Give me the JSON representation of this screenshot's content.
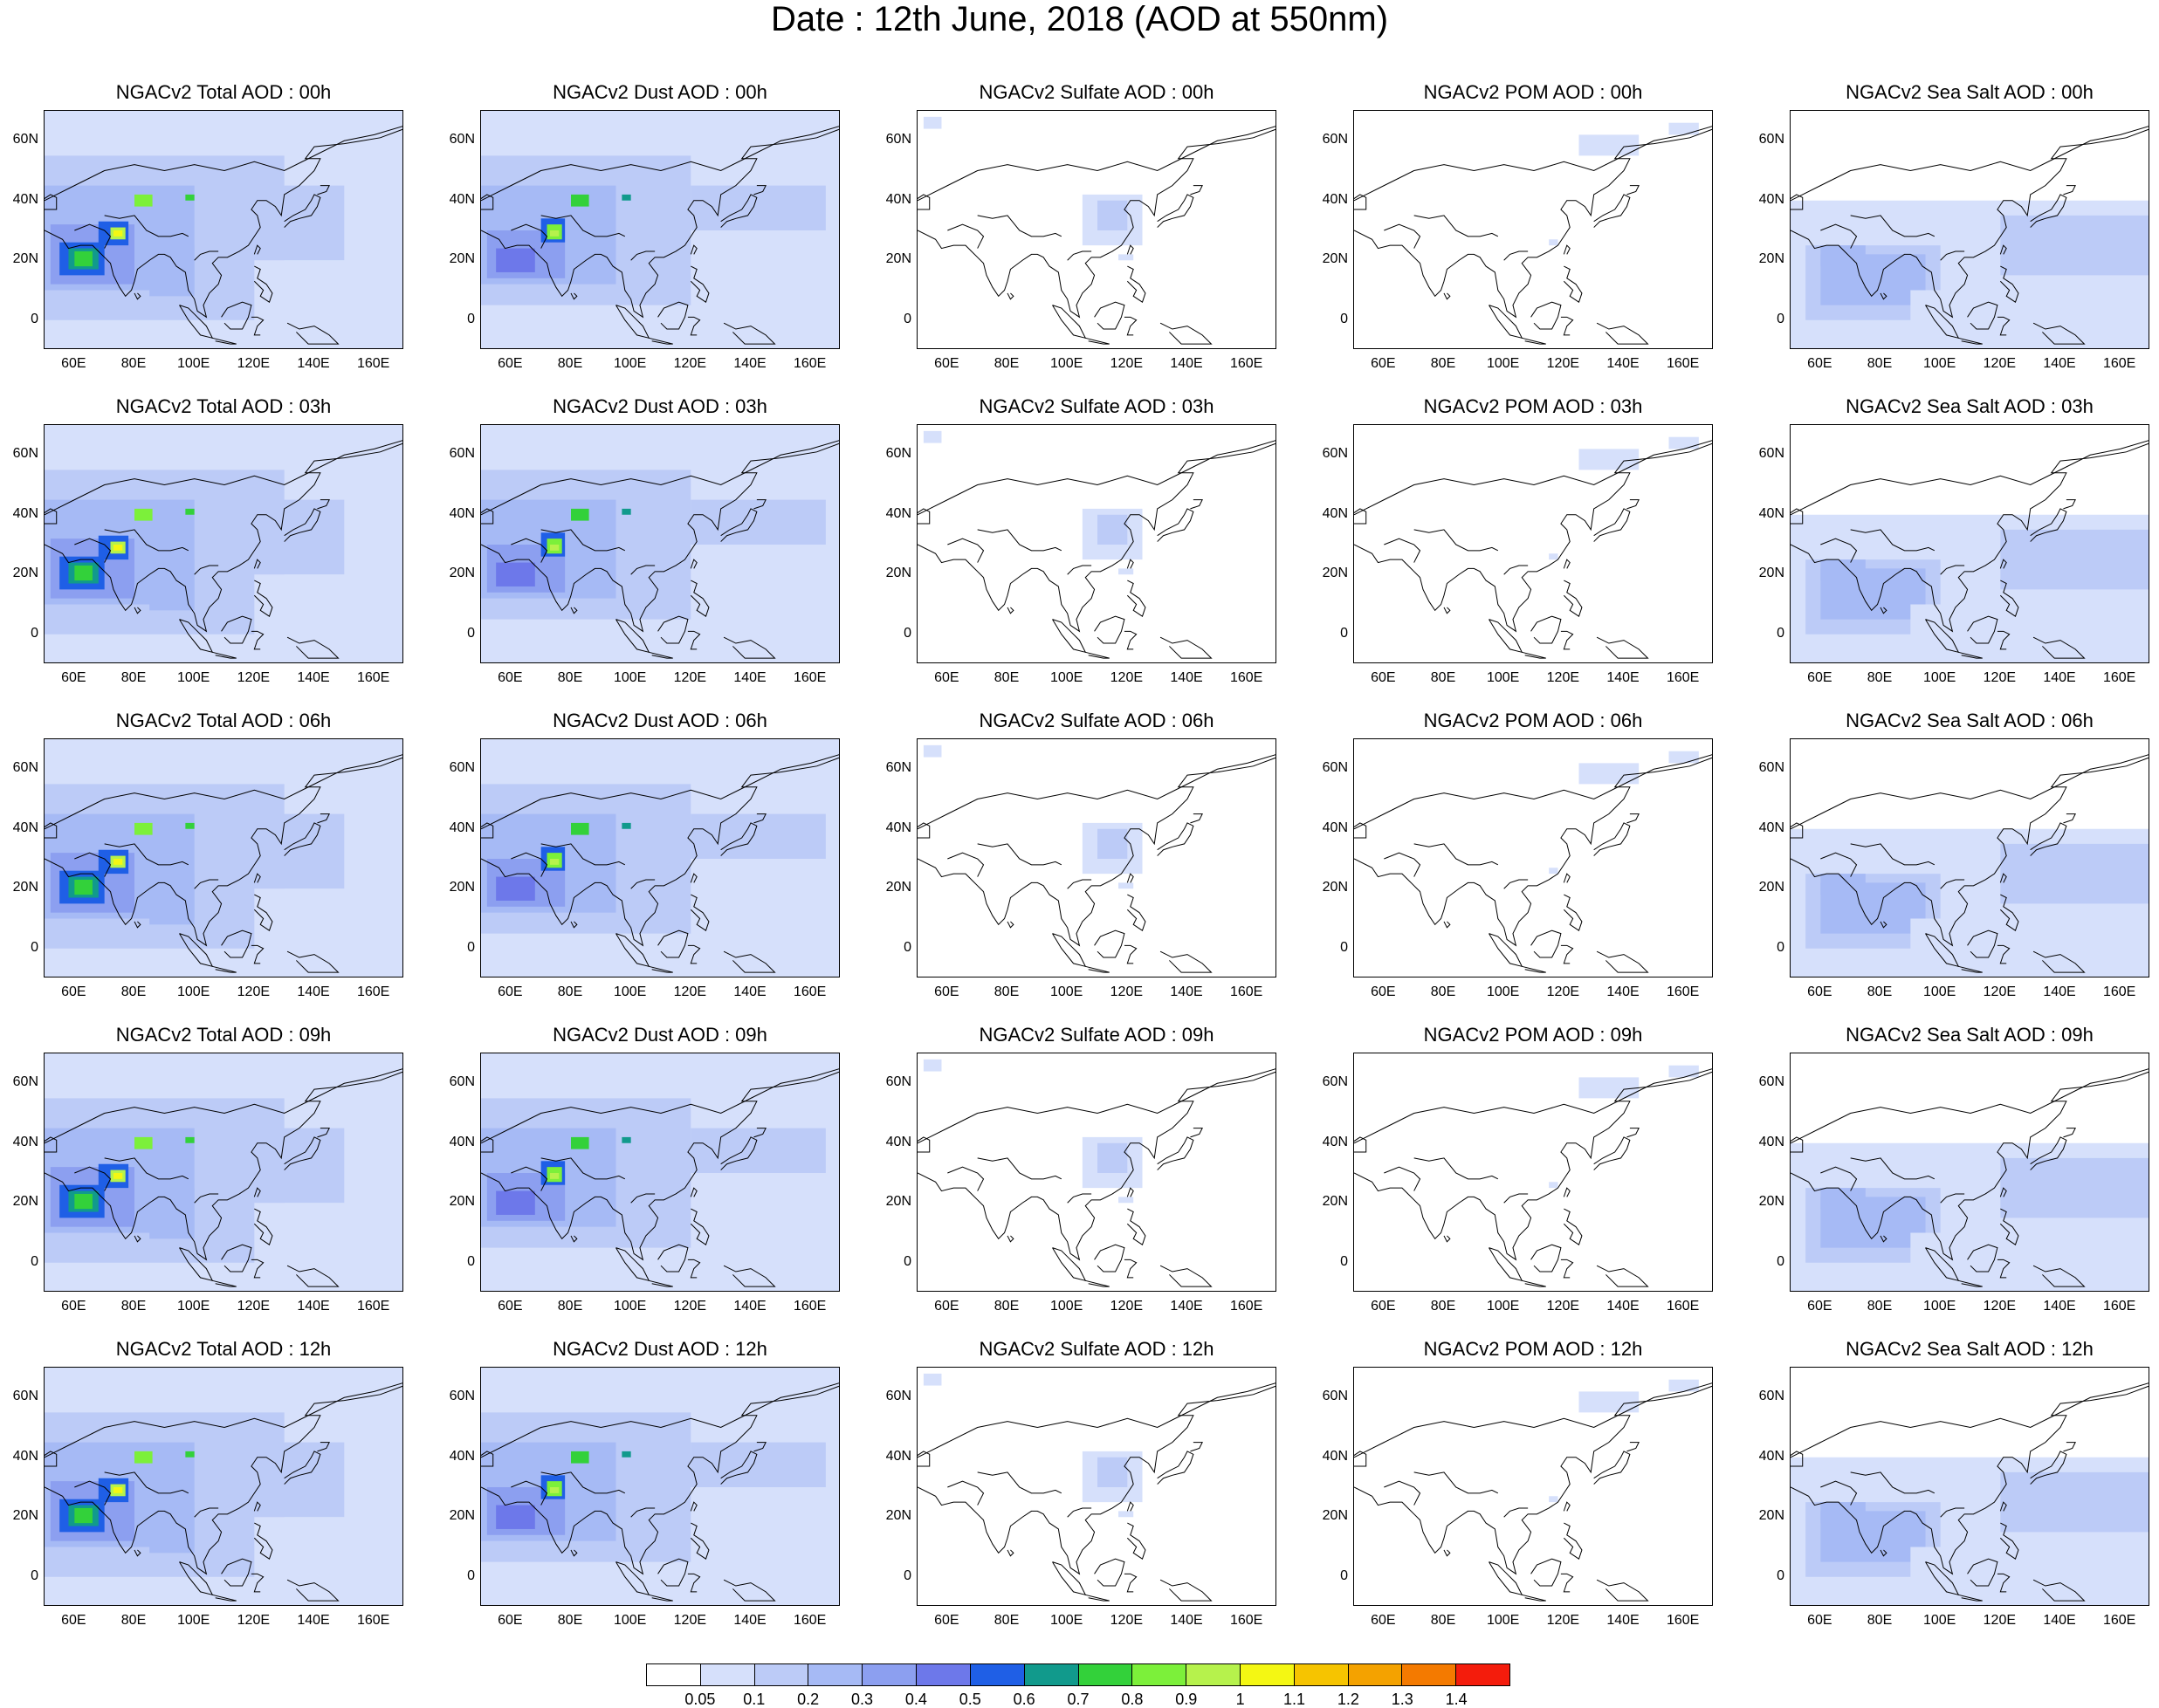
{
  "title": "Date : 12th June, 2018 (AOD at 550nm)",
  "lat_ticks": [
    "60N",
    "40N",
    "20N",
    "0"
  ],
  "lon_ticks": [
    "60E",
    "80E",
    "100E",
    "120E",
    "140E",
    "160E"
  ],
  "panels": [
    [
      "NGACv2 Total AOD : 00h",
      "NGACv2 Dust AOD : 00h",
      "NGACv2 Sulfate AOD : 00h",
      "NGACv2 POM AOD : 00h",
      "NGACv2 Sea Salt AOD : 00h"
    ],
    [
      "NGACv2 Total AOD : 03h",
      "NGACv2 Dust AOD : 03h",
      "NGACv2 Sulfate AOD : 03h",
      "NGACv2 POM AOD : 03h",
      "NGACv2 Sea Salt AOD : 03h"
    ],
    [
      "NGACv2 Total AOD : 06h",
      "NGACv2 Dust AOD : 06h",
      "NGACv2 Sulfate AOD : 06h",
      "NGACv2 POM AOD : 06h",
      "NGACv2 Sea Salt AOD : 06h"
    ],
    [
      "NGACv2 Total AOD : 09h",
      "NGACv2 Dust AOD : 09h",
      "NGACv2 Sulfate AOD : 09h",
      "NGACv2 POM AOD : 09h",
      "NGACv2 Sea Salt  AOD : 09h"
    ],
    [
      "NGACv2 Total AOD  : 12h",
      "NGACv2 Dust AOD : 12h",
      "NGACv2 Sulfate AOD : 12h",
      "NGACv2 POM  AOD : 12h",
      "NGACv2 Sea Salt  AOD : 12h"
    ]
  ],
  "colorbar": {
    "colors": [
      "#ffffff",
      "#d6e0fb",
      "#bccbf7",
      "#a6baf5",
      "#8c9ff0",
      "#6d78ea",
      "#1f5fe6",
      "#119a8c",
      "#33d13a",
      "#7cf03a",
      "#b6f24c",
      "#f4f713",
      "#f6c400",
      "#f4a200",
      "#f47a00",
      "#f41c0c"
    ],
    "labels": [
      "0.05",
      "0.1",
      "0.2",
      "0.3",
      "0.4",
      "0.5",
      "0.6",
      "0.7",
      "0.8",
      "0.9",
      "1",
      "1.1",
      "1.2",
      "1.3",
      "1.4"
    ]
  }
}
